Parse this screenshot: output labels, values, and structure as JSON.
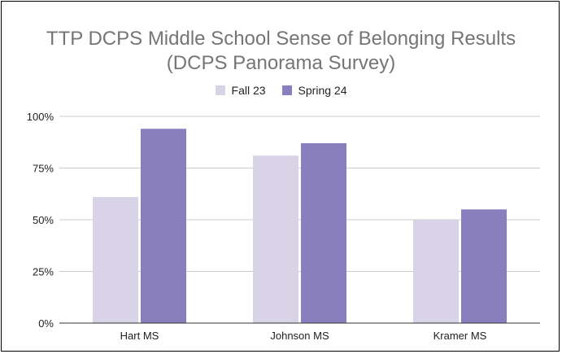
{
  "chart_data": {
    "type": "bar",
    "title": "TTP DCPS Middle School Sense of Belonging Results",
    "subtitle": "(DCPS Panorama Survey)",
    "categories": [
      "Hart MS",
      "Johnson MS",
      "Kramer MS"
    ],
    "series": [
      {
        "name": "Fall 23",
        "color": "#d9d3e8",
        "values": [
          61,
          81,
          50
        ]
      },
      {
        "name": "Spring 24",
        "color": "#8a7fbe",
        "values": [
          94,
          87,
          55
        ]
      }
    ],
    "ylim": [
      0,
      100
    ],
    "yticks": [
      0,
      25,
      50,
      75,
      100
    ],
    "ytick_labels": [
      "0%",
      "25%",
      "50%",
      "75%",
      "100%"
    ],
    "grid": true,
    "legend_position": "top-center"
  }
}
